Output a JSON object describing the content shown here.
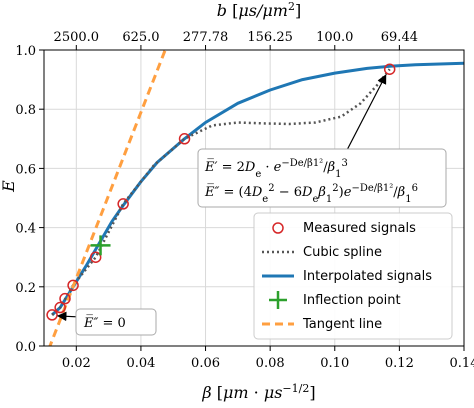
{
  "chart_data": {
    "type": "line",
    "xlabel": "β [μm · μs^-1/2]",
    "ylabel": "E̅",
    "top_axis_label": "b [μs/μm²]",
    "xlim": [
      0.01,
      0.14
    ],
    "ylim": [
      0.0,
      1.0
    ],
    "grid": true,
    "legend_position": "lower-right",
    "x_ticks": [
      0.02,
      0.04,
      0.06,
      0.08,
      0.1,
      0.12,
      0.14
    ],
    "x_tick_labels": [
      "0.02",
      "0.04",
      "0.06",
      "0.08",
      "0.10",
      "0.12",
      "0.14"
    ],
    "y_ticks": [
      0.0,
      0.2,
      0.4,
      0.6,
      0.8,
      1.0
    ],
    "y_tick_labels": [
      "0.0",
      "0.2",
      "0.4",
      "0.6",
      "0.8",
      "1.0"
    ],
    "top_ticks": [
      {
        "beta": 0.02,
        "label": "2500.0"
      },
      {
        "beta": 0.04,
        "label": "625.0"
      },
      {
        "beta": 0.06,
        "label": "277.78"
      },
      {
        "beta": 0.08,
        "label": "156.25"
      },
      {
        "beta": 0.1,
        "label": "100.0"
      },
      {
        "beta": 0.12,
        "label": "69.44"
      }
    ],
    "series": [
      {
        "name": "Measured signals",
        "style": "marker-circle",
        "color": "#d62728",
        "x": [
          0.0125,
          0.015,
          0.0165,
          0.019,
          0.026,
          0.0345,
          0.0535,
          0.117
        ],
        "y": [
          0.105,
          0.13,
          0.16,
          0.205,
          0.3,
          0.48,
          0.7,
          0.935
        ]
      },
      {
        "name": "Cubic spline",
        "style": "dotted",
        "color": "#555555",
        "x": [
          0.0125,
          0.015,
          0.019,
          0.026,
          0.0345,
          0.044,
          0.0535,
          0.062,
          0.07,
          0.078,
          0.086,
          0.094,
          0.102,
          0.108,
          0.113,
          0.117
        ],
        "y": [
          0.105,
          0.13,
          0.205,
          0.3,
          0.48,
          0.61,
          0.7,
          0.745,
          0.755,
          0.752,
          0.75,
          0.755,
          0.775,
          0.82,
          0.88,
          0.935
        ]
      },
      {
        "name": "Interpolated signals",
        "style": "solid",
        "color": "#1f77b4",
        "x": [
          0.0125,
          0.015,
          0.019,
          0.023,
          0.027,
          0.031,
          0.0345,
          0.04,
          0.045,
          0.0535,
          0.06,
          0.07,
          0.08,
          0.09,
          0.1,
          0.11,
          0.117,
          0.125,
          0.14
        ],
        "y": [
          0.105,
          0.13,
          0.2,
          0.27,
          0.345,
          0.42,
          0.475,
          0.555,
          0.62,
          0.7,
          0.755,
          0.82,
          0.865,
          0.9,
          0.922,
          0.938,
          0.945,
          0.95,
          0.955
        ]
      },
      {
        "name": "Inflection point",
        "style": "marker-plus",
        "color": "#2ca02c",
        "x": [
          0.0275
        ],
        "y": [
          0.34
        ]
      },
      {
        "name": "Tangent line",
        "style": "dashed",
        "color": "#ff9f40",
        "x": [
          0.0115,
          0.0475
        ],
        "y": [
          -0.01,
          1.0
        ]
      }
    ],
    "annotations": [
      {
        "text": "E̅″ = 0",
        "target_x": 0.0125,
        "target_y": 0.105
      },
      {
        "text_lines": [
          "E̅′ = 2Dₑ · e^(−Dₑ/β₁²)/β₁³",
          "E̅″ = (4Dₑ² − 6Dₑβ₁²)e^(−Dₑ/β₁²)/β₁⁶"
        ],
        "target_x": 0.117,
        "target_y": 0.935
      }
    ]
  }
}
